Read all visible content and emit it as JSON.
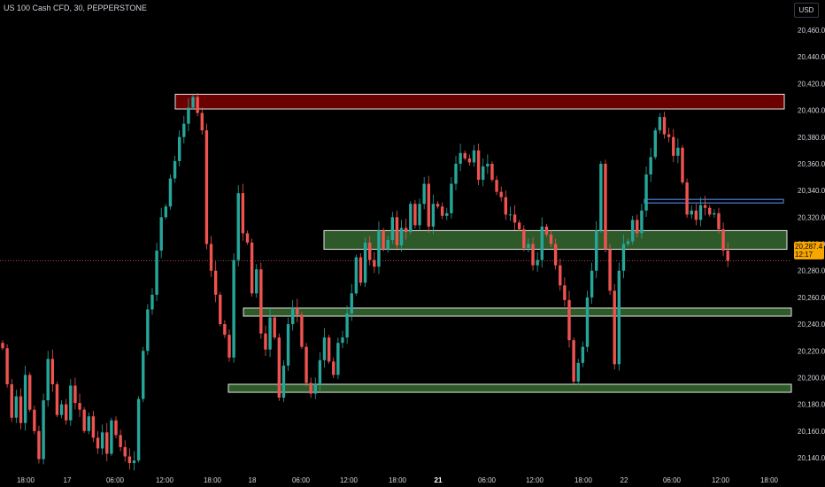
{
  "header": {
    "title": "US 100 Cash CFD, 30, PEPPERSTONE",
    "currency": "USD"
  },
  "last_price": {
    "value": "20,287.4",
    "countdown": "12:17"
  },
  "colors": {
    "background": "#000000",
    "up": "#26a69a",
    "down": "#ef5350",
    "red_zone": "#6b0000",
    "green_zone": "#2e5a2a",
    "blue_line": "#4a7fd6",
    "price_tag": "#f7a600"
  },
  "chart_data": {
    "type": "candlestick",
    "title": "US 100 Cash CFD, 30, PEPPERSTONE",
    "y_axis": {
      "ticks": [
        "20,460.0",
        "20,440.0",
        "20,420.0",
        "20,400.0",
        "20,380.0",
        "20,360.0",
        "20,340.0",
        "20,320.0",
        "20,300.0",
        "20,280.0",
        "20,260.0",
        "20,240.0",
        "20,220.0",
        "20,200.0",
        "20,180.0",
        "20,160.0",
        "20,140.0"
      ],
      "range": [
        20130,
        20470
      ]
    },
    "x_axis": {
      "ticks": [
        "18:00",
        "17",
        "06:00",
        "12:00",
        "18:00",
        "18",
        "06:00",
        "12:00",
        "18:00",
        "21",
        "06:00",
        "12:00",
        "18:00",
        "22",
        "06:00",
        "12:00",
        "18:00"
      ]
    },
    "zones": [
      {
        "kind": "resistance",
        "color": "red",
        "low": 20401,
        "high": 20412
      },
      {
        "kind": "support",
        "color": "green",
        "low": 20296,
        "high": 20310
      },
      {
        "kind": "support",
        "color": "green",
        "low": 20246,
        "high": 20252
      },
      {
        "kind": "support",
        "color": "green",
        "low": 20189,
        "high": 20195
      }
    ],
    "level_line": {
      "color": "blue",
      "value": 20332
    },
    "closes": [
      20222,
      20195,
      20170,
      20186,
      20166,
      20202,
      20176,
      20160,
      20139,
      20183,
      20214,
      20195,
      20172,
      20180,
      20168,
      20194,
      20181,
      20176,
      20160,
      20171,
      20155,
      20147,
      20159,
      20143,
      20168,
      20157,
      20148,
      20141,
      20136,
      20138,
      20184,
      20220,
      20251,
      20262,
      20295,
      20320,
      20328,
      20349,
      20362,
      20380,
      20390,
      20402,
      20410,
      20398,
      20385,
      20300,
      20280,
      20262,
      20240,
      20232,
      20215,
      20288,
      20338,
      20308,
      20301,
      20263,
      20281,
      20233,
      20221,
      20245,
      20230,
      20185,
      20209,
      20240,
      20252,
      20247,
      20223,
      20196,
      20188,
      20195,
      20213,
      20230,
      20212,
      20202,
      20226,
      20230,
      20248,
      20263,
      20290,
      20271,
      20301,
      20288,
      20283,
      20310,
      20296,
      20303,
      20320,
      20299,
      20312,
      20309,
      20330,
      20314,
      20330,
      20345,
      20313,
      20330,
      20328,
      20321,
      20323,
      20345,
      20360,
      20368,
      20364,
      20361,
      20370,
      20348,
      20358,
      20360,
      20348,
      20339,
      20335,
      20322,
      20322,
      20316,
      20311,
      20297,
      20300,
      20284,
      20288,
      20313,
      20307,
      20300,
      20284,
      20269,
      20258,
      20228,
      20197,
      20211,
      20223,
      20260,
      20280,
      20310,
      20360,
      20296,
      20265,
      20210,
      20280,
      20300,
      20302,
      20318,
      20308,
      20325,
      20352,
      20365,
      20385,
      20395,
      20382,
      20380,
      20366,
      20372,
      20346,
      20322,
      20325,
      20318,
      20329,
      20327,
      20322,
      20323,
      20311,
      20295,
      20287.4
    ]
  }
}
